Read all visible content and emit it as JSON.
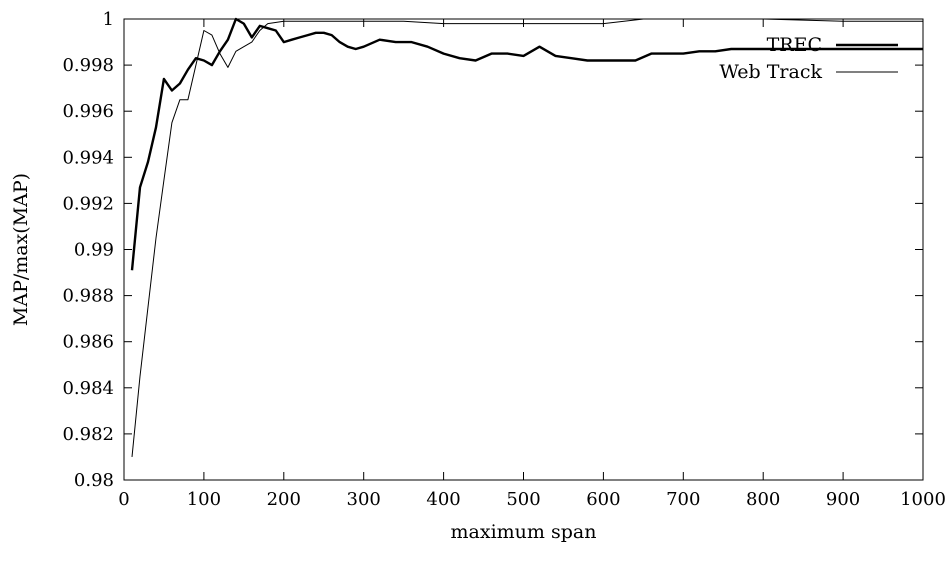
{
  "chart_data": {
    "type": "line",
    "title": "",
    "xlabel": "maximum span",
    "ylabel": "MAP/max(MAP)",
    "xlim": [
      0,
      1000
    ],
    "ylim": [
      0.98,
      1
    ],
    "x_ticks": [
      0,
      100,
      200,
      300,
      400,
      500,
      600,
      700,
      800,
      900,
      1000
    ],
    "y_ticks": [
      0.98,
      0.982,
      0.984,
      0.986,
      0.988,
      0.99,
      0.992,
      0.994,
      0.996,
      0.998,
      1
    ],
    "grid": false,
    "legend_position": "top-right",
    "series": [
      {
        "name": "TREC",
        "style": "thick",
        "x": [
          10,
          20,
          30,
          40,
          50,
          60,
          70,
          80,
          90,
          100,
          110,
          120,
          130,
          140,
          150,
          160,
          170,
          180,
          190,
          200,
          210,
          220,
          230,
          240,
          250,
          260,
          270,
          280,
          290,
          300,
          320,
          340,
          360,
          380,
          400,
          420,
          440,
          460,
          480,
          500,
          520,
          540,
          560,
          580,
          600,
          620,
          640,
          660,
          680,
          700,
          720,
          740,
          760,
          780,
          800,
          850,
          900,
          950,
          1000
        ],
        "y": [
          0.9891,
          0.9927,
          0.9938,
          0.9953,
          0.9974,
          0.9969,
          0.9972,
          0.9978,
          0.9983,
          0.9982,
          0.998,
          0.9986,
          0.9991,
          1.0,
          0.9998,
          0.9992,
          0.9997,
          0.9996,
          0.9995,
          0.999,
          0.9991,
          0.9992,
          0.9993,
          0.9994,
          0.9994,
          0.9993,
          0.999,
          0.9988,
          0.9987,
          0.9988,
          0.9991,
          0.999,
          0.999,
          0.9988,
          0.9985,
          0.9983,
          0.9982,
          0.9985,
          0.9985,
          0.9984,
          0.9988,
          0.9984,
          0.9983,
          0.9982,
          0.9982,
          0.9982,
          0.9982,
          0.9985,
          0.9985,
          0.9985,
          0.9986,
          0.9986,
          0.9987,
          0.9987,
          0.9987,
          0.9987,
          0.9987,
          0.9987,
          0.9987
        ]
      },
      {
        "name": "Web Track",
        "style": "thin",
        "x": [
          10,
          20,
          30,
          40,
          50,
          60,
          70,
          80,
          90,
          100,
          110,
          120,
          130,
          140,
          150,
          160,
          170,
          180,
          200,
          220,
          240,
          260,
          280,
          300,
          350,
          400,
          450,
          500,
          550,
          600,
          650,
          700,
          800,
          900,
          1000
        ],
        "y": [
          0.981,
          0.9845,
          0.9875,
          0.9905,
          0.993,
          0.9955,
          0.9965,
          0.9965,
          0.998,
          0.9995,
          0.9993,
          0.9985,
          0.9979,
          0.9986,
          0.9988,
          0.999,
          0.9995,
          0.9998,
          0.9999,
          0.9999,
          0.9999,
          0.9999,
          0.9999,
          0.9999,
          0.9999,
          0.9998,
          0.9998,
          0.9998,
          0.9998,
          0.9998,
          1.0,
          1.0,
          1.0,
          0.9999,
          0.9999
        ]
      }
    ]
  }
}
